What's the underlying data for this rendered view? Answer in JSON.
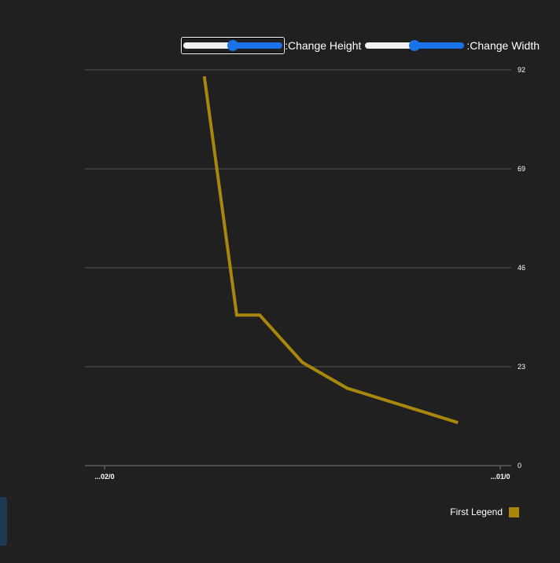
{
  "controls": {
    "height_label": ":Change Height",
    "width_label": ":Change Width",
    "height_value": 0.5,
    "width_value": 0.5
  },
  "legend": {
    "label": "First Legend",
    "color": "#a8870c"
  },
  "colors": {
    "background": "#202020",
    "grid": "#555555",
    "line": "#a8870c",
    "slider_accent": "#1a73e8"
  },
  "chart_data": {
    "type": "line",
    "title": "",
    "xlabel": "",
    "ylabel": "",
    "x_tick_labels": [
      "...02/0",
      "...01/0"
    ],
    "y_ticks": [
      0,
      23,
      46,
      69,
      92
    ],
    "ylim": [
      0,
      92
    ],
    "y_axis_side": "right",
    "grid": true,
    "legend_position": "bottom-right",
    "series": [
      {
        "name": "First Legend",
        "x": [
          0.28,
          0.356,
          0.41,
          0.51,
          0.615,
          0.875
        ],
        "y": [
          90.5,
          35,
          35,
          24,
          18,
          10
        ]
      }
    ]
  }
}
